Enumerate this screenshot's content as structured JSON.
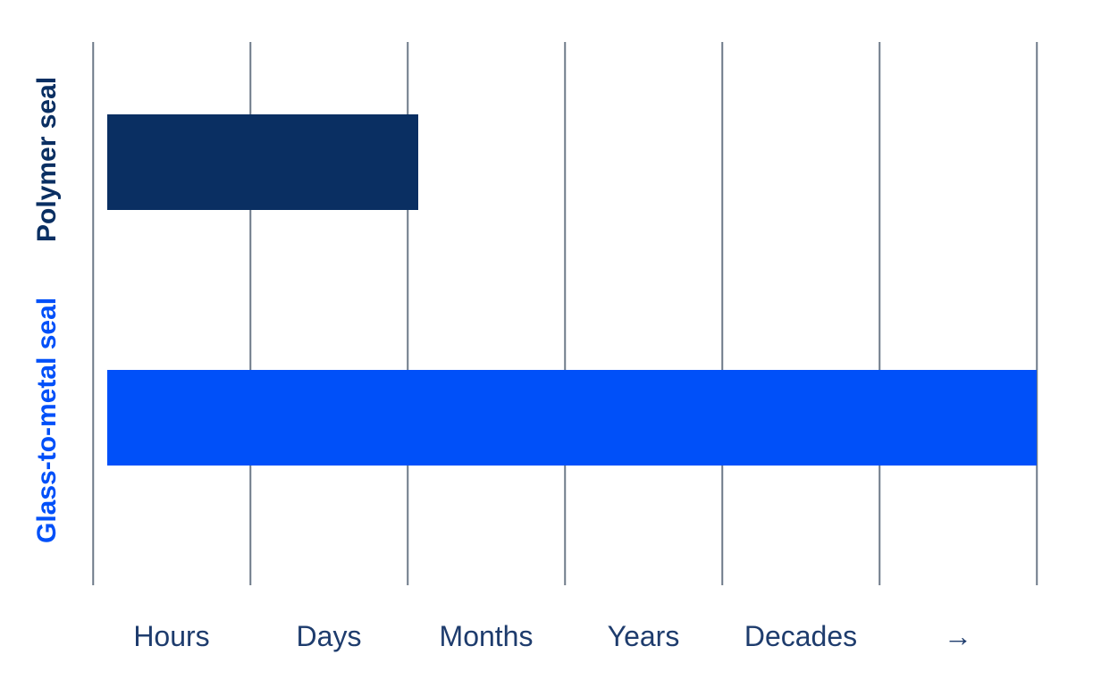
{
  "chart_data": {
    "type": "bar",
    "orientation": "horizontal",
    "title": "",
    "categories": [
      "Polymer seal",
      "Glass-to-metal seal"
    ],
    "x_tick_labels": [
      "Hours",
      "Days",
      "Months",
      "Years",
      "Decades",
      "→"
    ],
    "x_axis": {
      "scale": "qualitative-time",
      "range_units": [
        0,
        6
      ],
      "gridline_count": 7,
      "arrow_note": "last tick is a right arrow meaning beyond decades"
    },
    "bars": [
      {
        "category": "Polymer seal",
        "start_units": 0.09,
        "end_units": 2.07,
        "reading": "hours to days",
        "color": "#0a2f62"
      },
      {
        "category": "Glass-to-metal seal",
        "start_units": 0.09,
        "end_units": 6.0,
        "reading": "decades and beyond (full scale)",
        "color": "#0050f9"
      }
    ],
    "grid": true,
    "legend": "none"
  },
  "colors": {
    "background": "#ffffff",
    "gridline": "#6e7a89",
    "axis_label_text": "#1e3c6d",
    "polymer_bar": "#0a2f62",
    "glass_to_metal_bar": "#0050f9"
  }
}
